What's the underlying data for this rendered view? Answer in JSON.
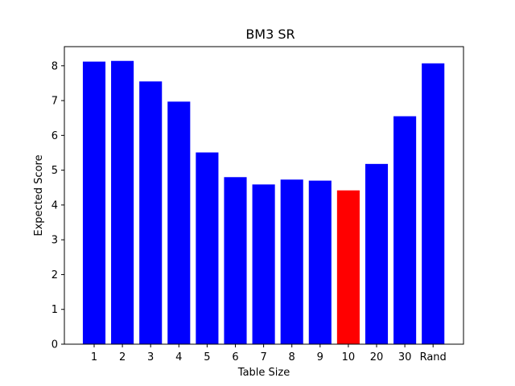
{
  "chart_data": {
    "type": "bar",
    "title": "BM3 SR",
    "xlabel": "Table Size",
    "ylabel": "Expected Score",
    "categories": [
      "1",
      "2",
      "3",
      "4",
      "5",
      "6",
      "7",
      "8",
      "9",
      "10",
      "20",
      "30",
      "Rand"
    ],
    "values": [
      8.12,
      8.14,
      7.55,
      6.97,
      5.51,
      4.8,
      4.59,
      4.73,
      4.7,
      4.42,
      5.18,
      6.55,
      8.07
    ],
    "bar_colors": [
      "#0000ff",
      "#0000ff",
      "#0000ff",
      "#0000ff",
      "#0000ff",
      "#0000ff",
      "#0000ff",
      "#0000ff",
      "#0000ff",
      "#ff0000",
      "#0000ff",
      "#0000ff",
      "#0000ff"
    ],
    "ylim": [
      0,
      8.55
    ],
    "yticks": [
      "0",
      "1",
      "2",
      "3",
      "4",
      "5",
      "6",
      "7",
      "8"
    ],
    "grid": false,
    "legend": "none"
  }
}
